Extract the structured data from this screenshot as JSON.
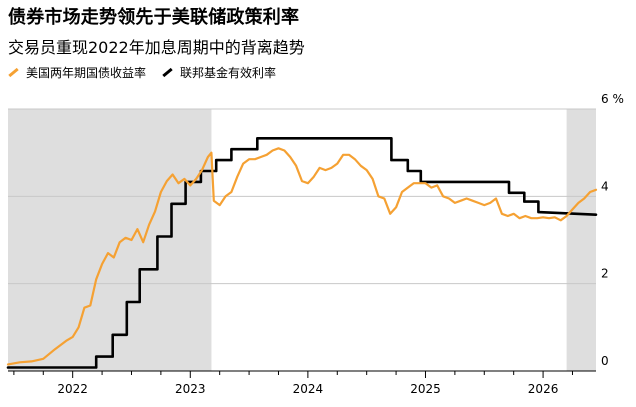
{
  "title": "债券市场走势领先于美联储政策利率",
  "subtitle": "交易员重现2022年加息周期中的背离趋势",
  "colors": {
    "treasury": "#f5a133",
    "fed": "#000000",
    "recession_shade": "#dedede",
    "grid": "#c8c8c8"
  },
  "chart_data": {
    "type": "line",
    "title": "债券市场走势领先于美联储政策利率",
    "subtitle": "交易员重现2022年加息周期中的背离趋势",
    "xlabel": "",
    "ylabel": "",
    "x_range": [
      2021.45,
      2026.45
    ],
    "ylim": [
      0,
      6
    ],
    "y_ticks": [
      {
        "value": 6,
        "label": "6 %"
      },
      {
        "value": 4,
        "label": "4"
      },
      {
        "value": 2,
        "label": "2"
      },
      {
        "value": 0,
        "label": "0"
      }
    ],
    "x_ticks": [
      {
        "value": 2022,
        "label": "2022"
      },
      {
        "value": 2023,
        "label": "2023"
      },
      {
        "value": 2024,
        "label": "2024"
      },
      {
        "value": 2025,
        "label": "2025"
      },
      {
        "value": 2026,
        "label": "2026"
      }
    ],
    "shaded_periods": [
      [
        2021.45,
        2023.18
      ],
      [
        2026.2,
        2026.45
      ]
    ],
    "grid": true,
    "legend_position": "top-left",
    "series": [
      {
        "name": "美国两年期国债收益率",
        "color": "#f5a133",
        "points": [
          [
            2021.45,
            0.15
          ],
          [
            2021.55,
            0.2
          ],
          [
            2021.65,
            0.22
          ],
          [
            2021.75,
            0.28
          ],
          [
            2021.85,
            0.5
          ],
          [
            2021.95,
            0.7
          ],
          [
            2022.0,
            0.78
          ],
          [
            2022.05,
            1.0
          ],
          [
            2022.1,
            1.45
          ],
          [
            2022.15,
            1.5
          ],
          [
            2022.2,
            2.1
          ],
          [
            2022.25,
            2.45
          ],
          [
            2022.3,
            2.7
          ],
          [
            2022.35,
            2.6
          ],
          [
            2022.4,
            2.95
          ],
          [
            2022.45,
            3.05
          ],
          [
            2022.5,
            3.0
          ],
          [
            2022.55,
            3.25
          ],
          [
            2022.6,
            2.95
          ],
          [
            2022.65,
            3.35
          ],
          [
            2022.7,
            3.65
          ],
          [
            2022.75,
            4.1
          ],
          [
            2022.8,
            4.35
          ],
          [
            2022.85,
            4.5
          ],
          [
            2022.9,
            4.3
          ],
          [
            2022.95,
            4.4
          ],
          [
            2023.0,
            4.25
          ],
          [
            2023.05,
            4.4
          ],
          [
            2023.1,
            4.6
          ],
          [
            2023.15,
            4.9
          ],
          [
            2023.18,
            5.0
          ],
          [
            2023.2,
            3.9
          ],
          [
            2023.25,
            3.8
          ],
          [
            2023.3,
            4.0
          ],
          [
            2023.35,
            4.1
          ],
          [
            2023.4,
            4.45
          ],
          [
            2023.45,
            4.75
          ],
          [
            2023.5,
            4.85
          ],
          [
            2023.55,
            4.85
          ],
          [
            2023.6,
            4.9
          ],
          [
            2023.65,
            4.95
          ],
          [
            2023.7,
            5.05
          ],
          [
            2023.75,
            5.1
          ],
          [
            2023.8,
            5.05
          ],
          [
            2023.85,
            4.9
          ],
          [
            2023.9,
            4.7
          ],
          [
            2023.95,
            4.35
          ],
          [
            2024.0,
            4.3
          ],
          [
            2024.05,
            4.45
          ],
          [
            2024.1,
            4.65
          ],
          [
            2024.15,
            4.6
          ],
          [
            2024.2,
            4.65
          ],
          [
            2024.25,
            4.75
          ],
          [
            2024.3,
            4.95
          ],
          [
            2024.35,
            4.95
          ],
          [
            2024.4,
            4.85
          ],
          [
            2024.45,
            4.7
          ],
          [
            2024.5,
            4.6
          ],
          [
            2024.55,
            4.4
          ],
          [
            2024.6,
            4.0
          ],
          [
            2024.65,
            3.95
          ],
          [
            2024.7,
            3.6
          ],
          [
            2024.75,
            3.75
          ],
          [
            2024.8,
            4.1
          ],
          [
            2024.85,
            4.2
          ],
          [
            2024.9,
            4.3
          ],
          [
            2024.95,
            4.3
          ],
          [
            2025.0,
            4.3
          ],
          [
            2025.05,
            4.2
          ],
          [
            2025.1,
            4.25
          ],
          [
            2025.15,
            4.0
          ],
          [
            2025.2,
            3.95
          ],
          [
            2025.25,
            3.85
          ],
          [
            2025.3,
            3.9
          ],
          [
            2025.35,
            3.95
          ],
          [
            2025.4,
            3.9
          ],
          [
            2025.45,
            3.85
          ],
          [
            2025.5,
            3.8
          ],
          [
            2025.55,
            3.85
          ],
          [
            2025.6,
            3.95
          ],
          [
            2025.65,
            3.6
          ],
          [
            2025.7,
            3.55
          ],
          [
            2025.75,
            3.6
          ],
          [
            2025.8,
            3.5
          ],
          [
            2025.85,
            3.55
          ],
          [
            2025.9,
            3.5
          ],
          [
            2025.95,
            3.5
          ],
          [
            2026.0,
            3.52
          ],
          [
            2026.05,
            3.5
          ],
          [
            2026.1,
            3.52
          ],
          [
            2026.15,
            3.45
          ],
          [
            2026.2,
            3.55
          ],
          [
            2026.25,
            3.7
          ],
          [
            2026.3,
            3.85
          ],
          [
            2026.35,
            3.95
          ],
          [
            2026.4,
            4.1
          ],
          [
            2026.45,
            4.15
          ]
        ]
      },
      {
        "name": "联邦基金有效利率",
        "color": "#000000",
        "points": [
          [
            2021.45,
            0.08
          ],
          [
            2022.2,
            0.08
          ],
          [
            2022.2,
            0.33
          ],
          [
            2022.34,
            0.33
          ],
          [
            2022.34,
            0.83
          ],
          [
            2022.46,
            0.83
          ],
          [
            2022.46,
            1.58
          ],
          [
            2022.57,
            1.58
          ],
          [
            2022.57,
            2.33
          ],
          [
            2022.72,
            2.33
          ],
          [
            2022.72,
            3.08
          ],
          [
            2022.84,
            3.08
          ],
          [
            2022.84,
            3.83
          ],
          [
            2022.96,
            3.83
          ],
          [
            2022.96,
            4.33
          ],
          [
            2023.09,
            4.33
          ],
          [
            2023.09,
            4.58
          ],
          [
            2023.22,
            4.58
          ],
          [
            2023.22,
            4.83
          ],
          [
            2023.35,
            4.83
          ],
          [
            2023.35,
            5.08
          ],
          [
            2023.57,
            5.08
          ],
          [
            2023.57,
            5.33
          ],
          [
            2024.71,
            5.33
          ],
          [
            2024.71,
            4.83
          ],
          [
            2024.85,
            4.83
          ],
          [
            2024.85,
            4.58
          ],
          [
            2024.96,
            4.58
          ],
          [
            2024.96,
            4.33
          ],
          [
            2025.71,
            4.33
          ],
          [
            2025.71,
            4.08
          ],
          [
            2025.84,
            4.08
          ],
          [
            2025.84,
            3.88
          ],
          [
            2025.96,
            3.88
          ],
          [
            2025.96,
            3.64
          ],
          [
            2026.45,
            3.58
          ]
        ]
      }
    ]
  }
}
